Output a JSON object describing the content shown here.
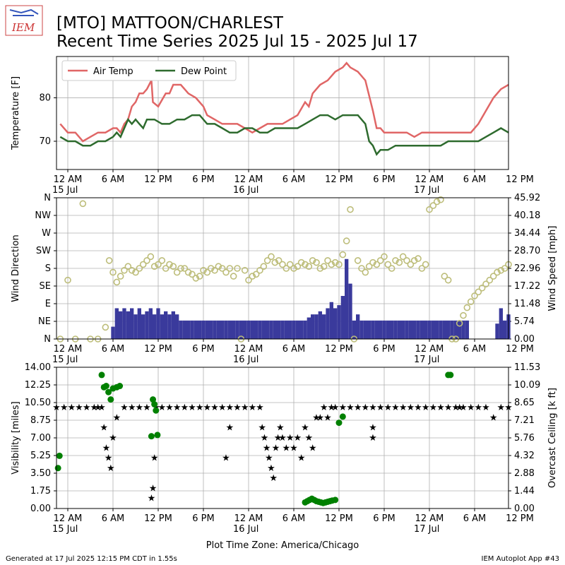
{
  "header": {
    "logo_text": "IEM",
    "title_line1": "[MTO] MATTOON/CHARLEST",
    "title_line2": "Recent Time Series 2025 Jul 15 - 2025 Jul 17"
  },
  "footer": {
    "left": "Generated at 17 Jul 2025 12:15 PM CDT in 1.55s",
    "right": "IEM Autoplot App #43"
  },
  "colors": {
    "air_temp": "#e06666",
    "dew_point": "#2e6b2e",
    "wind_dir_marker": "#bdbd7a",
    "wind_speed_bar": "#3a3a9c",
    "visibility": "#0000ff",
    "ceiling": "#008000"
  },
  "x_axis": {
    "tick_labels": [
      "12 AM",
      "6 AM",
      "12 PM",
      "6 PM",
      "12 AM",
      "6 AM",
      "12 PM",
      "6 PM",
      "12 AM",
      "6 AM",
      "12 PM"
    ],
    "date_labels": [
      {
        "hour": 0,
        "text": "15 Jul"
      },
      {
        "hour": 24,
        "text": "16 Jul"
      },
      {
        "hour": 48,
        "text": "17 Jul"
      }
    ],
    "xlabel": "Plot Time Zone: America/Chicago"
  },
  "chart_data": [
    {
      "type": "line",
      "ylabel": "Temperature [F]",
      "ylim": [
        63.5,
        89.5
      ],
      "yticks": [
        "70",
        "80"
      ],
      "legend": "top-left",
      "grid": true,
      "series": [
        {
          "name": "Air Temp",
          "x": [
            0.5,
            1.5,
            2.5,
            3.5,
            4.5,
            5.5,
            6.5,
            7.5,
            8,
            8.5,
            9,
            9.5,
            10,
            10.5,
            11,
            11.5,
            12,
            12.3,
            12.6,
            12.8,
            13.5,
            14.5,
            15,
            15.5,
            16.5,
            17.5,
            18.5,
            19.5,
            20,
            21,
            22,
            23,
            24,
            25,
            26,
            27,
            28,
            29,
            30,
            31,
            32,
            33,
            33.5,
            34,
            35,
            36,
            37,
            38,
            38.5,
            39,
            40,
            41,
            42,
            42.5,
            42.8,
            43,
            43.5,
            44.5,
            45.5,
            46.5,
            47.5,
            48.5,
            49.5,
            50.5,
            51.5,
            52.5,
            53.5,
            54.5,
            55,
            56,
            57,
            58,
            59,
            60
          ],
          "y": [
            74,
            72,
            72,
            70,
            71,
            72,
            72,
            73,
            73,
            72,
            74,
            75,
            78,
            79,
            81,
            81,
            82,
            83,
            84,
            79,
            78,
            81,
            81,
            83,
            83,
            81,
            80,
            78,
            76,
            75,
            74,
            74,
            74,
            73,
            72,
            73,
            74,
            74,
            74,
            75,
            76,
            79,
            78,
            81,
            83,
            84,
            86,
            87,
            88,
            87,
            86,
            84,
            77,
            73,
            73,
            73,
            72,
            72,
            72,
            72,
            71,
            72,
            72,
            72,
            72,
            72,
            72,
            72,
            72,
            74,
            77,
            80,
            82,
            83
          ]
        },
        {
          "name": "Dew Point",
          "x": [
            0.5,
            1.5,
            2.5,
            3.5,
            4.5,
            5.5,
            6.5,
            7.5,
            8,
            8.5,
            9,
            9.5,
            10,
            10.5,
            11,
            11.5,
            12,
            12.5,
            13,
            14,
            15,
            16,
            17,
            18,
            19,
            20,
            21,
            22,
            23,
            24,
            25,
            26,
            27,
            28,
            29,
            30,
            31,
            32,
            33,
            34,
            35,
            36,
            37,
            38,
            39,
            40,
            41,
            41.5,
            42,
            42.5,
            43,
            44,
            45,
            46,
            47,
            48,
            49,
            50,
            51,
            52,
            53,
            54,
            55,
            56,
            57,
            58,
            59,
            60
          ],
          "y": [
            71,
            70,
            70,
            69,
            69,
            70,
            70,
            71,
            72,
            71,
            73,
            75,
            74,
            75,
            74,
            73,
            75,
            75,
            75,
            74,
            74,
            75,
            75,
            76,
            76,
            74,
            74,
            73,
            72,
            72,
            73,
            73,
            72,
            72,
            73,
            73,
            73,
            73,
            74,
            75,
            76,
            76,
            75,
            76,
            76,
            76,
            74,
            70,
            69,
            67,
            68,
            68,
            69,
            69,
            69,
            69,
            69,
            69,
            69,
            70,
            70,
            70,
            70,
            70,
            71,
            72,
            73,
            72
          ]
        }
      ]
    },
    {
      "type": "scatter",
      "ylabel": "Wind Direction",
      "ylabel_right": "Wind Speed [mph]",
      "yticks": [
        "N",
        "NE",
        "E",
        "SE",
        "S",
        "SW",
        "W",
        "NW",
        "N"
      ],
      "yticks_right": [
        "0.00",
        "5.74",
        "11.48",
        "17.22",
        "22.96",
        "28.70",
        "34.44",
        "40.18",
        "45.92"
      ],
      "ylim": [
        0,
        360
      ],
      "ylim_right": [
        0,
        45.92
      ],
      "grid": true,
      "series": [
        {
          "name": "Wind Direction",
          "x": [
            0.5,
            1.5,
            2.5,
            3.5,
            4.5,
            5.5,
            6.5,
            7,
            7.5,
            8,
            8.5,
            9,
            9.5,
            10,
            10.5,
            11,
            11.5,
            12,
            12.5,
            13,
            13.5,
            14,
            14.5,
            15,
            15.5,
            16,
            16.5,
            17,
            17.5,
            18,
            18.5,
            19,
            19.5,
            20,
            20.5,
            21,
            21.5,
            22,
            22.5,
            23,
            23.5,
            24,
            24.5,
            25,
            25.5,
            26,
            26.5,
            27,
            27.5,
            28,
            28.5,
            29,
            29.5,
            30,
            30.5,
            31,
            31.5,
            32,
            32.5,
            33,
            33.5,
            34,
            34.5,
            35,
            35.5,
            36,
            36.5,
            37,
            37.5,
            38,
            38.5,
            39,
            39.5,
            40,
            40.5,
            41,
            41.5,
            42,
            42.5,
            43,
            43.5,
            44,
            44.5,
            45,
            45.5,
            46,
            46.5,
            47,
            47.5,
            48,
            48.5,
            49,
            49.5,
            50,
            50.5,
            51,
            51.5,
            52,
            52.5,
            53,
            53.5,
            54,
            54.5,
            55,
            55.5,
            56,
            56.5,
            57,
            57.5,
            58,
            58.5,
            59,
            59.5,
            60
          ],
          "y": [
            0,
            150,
            0,
            345,
            0,
            0,
            30,
            200,
            170,
            145,
            160,
            175,
            185,
            175,
            170,
            180,
            190,
            200,
            210,
            185,
            190,
            200,
            180,
            190,
            185,
            170,
            180,
            180,
            170,
            165,
            155,
            160,
            175,
            170,
            180,
            175,
            185,
            180,
            170,
            180,
            160,
            180,
            0,
            175,
            150,
            160,
            165,
            175,
            185,
            200,
            210,
            195,
            200,
            190,
            180,
            190,
            180,
            185,
            195,
            190,
            185,
            200,
            195,
            180,
            185,
            200,
            190,
            195,
            190,
            215,
            250,
            330,
            0,
            200,
            180,
            170,
            185,
            195,
            190,
            200,
            210,
            190,
            180,
            200,
            195,
            210,
            200,
            190,
            200,
            205,
            180,
            190,
            330,
            340,
            350,
            355,
            160,
            150,
            0,
            0,
            40,
            60,
            80,
            95,
            110,
            120,
            130,
            140,
            150,
            160,
            170,
            175,
            180,
            190
          ]
        },
        {
          "name": "Wind Speed",
          "x": [
            0.5,
            1.5,
            2.5,
            3.5,
            4.5,
            5.5,
            6.5,
            7,
            7.5,
            8,
            8.5,
            9,
            9.5,
            10,
            10.5,
            11,
            11.5,
            12,
            12.5,
            13,
            13.5,
            14,
            14.5,
            15,
            15.5,
            16,
            16.5,
            17,
            17.5,
            18,
            18.5,
            19,
            19.5,
            20,
            20.5,
            21,
            21.5,
            22,
            22.5,
            23,
            23.5,
            24,
            24.5,
            25,
            25.5,
            26,
            26.5,
            27,
            27.5,
            28,
            28.5,
            29,
            29.5,
            30,
            30.5,
            31,
            31.5,
            32,
            32.5,
            33,
            33.5,
            34,
            34.5,
            35,
            35.5,
            36,
            36.5,
            37,
            37.5,
            38,
            38.5,
            39,
            39.5,
            40,
            40.5,
            41,
            41.5,
            42,
            42.5,
            43,
            43.5,
            44,
            44.5,
            45,
            45.5,
            46,
            46.5,
            47,
            47.5,
            48,
            48.5,
            49,
            49.5,
            50,
            50.5,
            51,
            51.5,
            52,
            52.5,
            53,
            53.5,
            54,
            54.5,
            55,
            55.5,
            56,
            56.5,
            57,
            57.5,
            58,
            58.5,
            59,
            59.5,
            60
          ],
          "y": [
            0,
            0,
            0,
            0,
            0,
            0,
            0,
            0,
            4,
            10,
            9,
            10,
            9,
            10,
            8,
            10,
            8,
            9,
            10,
            8,
            10,
            8,
            9,
            8,
            9,
            8,
            6,
            6,
            6,
            6,
            6,
            6,
            6,
            6,
            6,
            6,
            6,
            6,
            6,
            6,
            6,
            6,
            6,
            6,
            6,
            6,
            6,
            6,
            6,
            6,
            6,
            6,
            6,
            6,
            6,
            6,
            6,
            6,
            6,
            6,
            7,
            8,
            8,
            9,
            8,
            10,
            12,
            10,
            11,
            14,
            26,
            18,
            6,
            8,
            6,
            6,
            6,
            6,
            6,
            6,
            6,
            6,
            6,
            6,
            6,
            6,
            6,
            6,
            6,
            6,
            6,
            6,
            6,
            6,
            6,
            6,
            6,
            6,
            6,
            6,
            6,
            6,
            6,
            0,
            0,
            0,
            0,
            0,
            0,
            0,
            5,
            10,
            6,
            8
          ]
        }
      ]
    },
    {
      "type": "scatter",
      "ylabel": "Visibility [miles]",
      "ylabel_right": "Overcast Ceiling [k ft]",
      "yticks": [
        "0.00",
        "1.75",
        "3.50",
        "5.25",
        "7.00",
        "8.75",
        "10.50",
        "12.25",
        "14.00"
      ],
      "yticks_right": [
        "0.00",
        "1.44",
        "2.88",
        "4.32",
        "5.76",
        "7.21",
        "8.65",
        "10.09",
        "11.53"
      ],
      "ylim": [
        0,
        14
      ],
      "ylim_right": [
        0,
        11.53
      ],
      "grid": true,
      "series": [
        {
          "name": "Visibility",
          "x": [
            0,
            1,
            2,
            3,
            4,
            5,
            5.5,
            6,
            6.3,
            6.6,
            6.9,
            7.2,
            7.5,
            8,
            9,
            10,
            11,
            12,
            12.6,
            12.8,
            13,
            13.2,
            14,
            15,
            16,
            17,
            18,
            19,
            20,
            21,
            22,
            22.5,
            23,
            23,
            24,
            25,
            26,
            27,
            27.3,
            27.6,
            27.9,
            28.2,
            28.5,
            28.8,
            29.1,
            29.4,
            29.7,
            30,
            30.5,
            31,
            31.5,
            32,
            32.5,
            33,
            33.5,
            34,
            34.5,
            35,
            35.5,
            36,
            36.5,
            37,
            38,
            39,
            40,
            41,
            42,
            42,
            42,
            43,
            44,
            45,
            46,
            47,
            48,
            49,
            50,
            51,
            52,
            53,
            53.5,
            54,
            55,
            56,
            57,
            58,
            59,
            60
          ],
          "y": [
            10,
            10,
            10,
            10,
            10,
            10,
            10,
            10,
            8,
            6,
            5,
            4,
            7,
            9,
            10,
            10,
            10,
            10,
            1,
            2,
            5,
            10,
            10,
            10,
            10,
            10,
            10,
            10,
            10,
            10,
            10,
            5,
            8,
            10,
            10,
            10,
            10,
            10,
            8,
            7,
            6,
            5,
            4,
            3,
            6,
            7,
            8,
            7,
            6,
            7,
            6,
            7,
            5,
            8,
            7,
            6,
            9,
            9,
            10,
            9,
            10,
            10,
            10,
            10,
            10,
            10,
            10,
            8,
            7,
            10,
            10,
            10,
            10,
            10,
            10,
            10,
            10,
            10,
            10,
            10,
            10,
            10,
            10,
            10,
            10,
            9,
            10,
            10
          ]
        },
        {
          "name": "Overcast Ceiling",
          "x": [
            0.2,
            0.4,
            6,
            6.3,
            6.6,
            6.9,
            7.2,
            7.5,
            8,
            8.4,
            12.6,
            12.8,
            13,
            13.2,
            13.4,
            33,
            33.3,
            33.6,
            33.9,
            34.2,
            34.5,
            34.8,
            35.1,
            35.4,
            35.7,
            36,
            36.3,
            36.6,
            37,
            37.5,
            38,
            52,
            52.3
          ],
          "y": [
            3.3,
            4.3,
            10.9,
            9.9,
            10,
            9.5,
            8.9,
            9.8,
            9.9,
            10,
            5.9,
            8.9,
            8.5,
            8.0,
            6.0,
            0.5,
            0.6,
            0.7,
            0.8,
            0.7,
            0.6,
            0.55,
            0.5,
            0.45,
            0.5,
            0.55,
            0.6,
            0.65,
            0.7,
            7.0,
            7.5,
            10.9,
            10.9
          ]
        }
      ]
    }
  ]
}
